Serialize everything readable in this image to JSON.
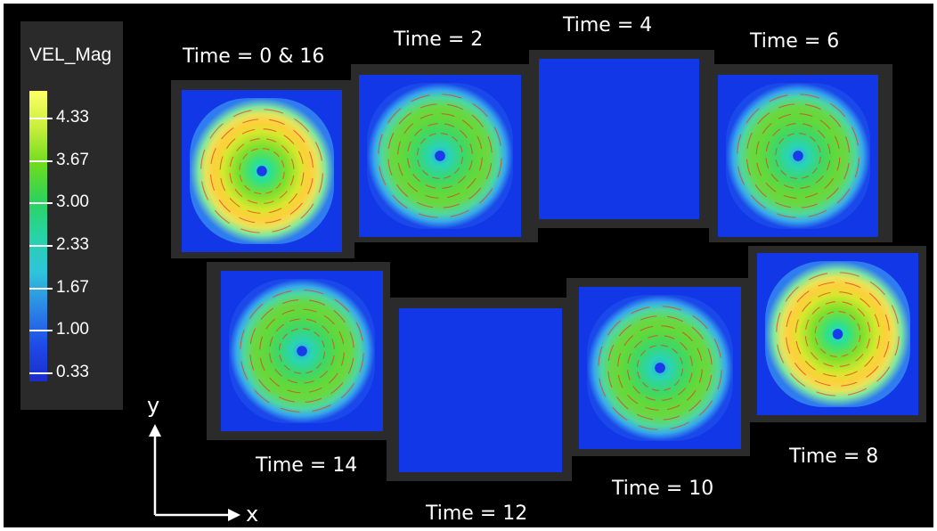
{
  "colors": {
    "background": "#000000",
    "outer_border": "#ffffff",
    "legend_panel": "#2a2a2a",
    "frame": "#2b2b2b",
    "field_blue": "#1237e6",
    "text": "#ffffff"
  },
  "colorbar": {
    "title": "VEL_Mag",
    "ticks": [
      "4.33",
      "3.67",
      "3.00",
      "2.33",
      "1.67",
      "1.00",
      "0.33"
    ],
    "gradient": [
      "#ffff66",
      "#c8ef3c",
      "#6fdc1e",
      "#2dd35a",
      "#27d3a8",
      "#2ec4dc",
      "#2b86e6",
      "#1e4be8",
      "#1a2ccc"
    ]
  },
  "axes": {
    "x_label": "x",
    "y_label": "y"
  },
  "panels": [
    {
      "caption": "Time = 0 & 16",
      "field": "strong-vortex"
    },
    {
      "caption": "Time = 2",
      "field": "moderate-vortex"
    },
    {
      "caption": "Time = 4",
      "field": "uniform-blue"
    },
    {
      "caption": "Time = 6",
      "field": "moderate-vortex"
    },
    {
      "caption": "Time = 8",
      "field": "strong-vortex"
    },
    {
      "caption": "Time = 10",
      "field": "moderate-vortex"
    },
    {
      "caption": "Time = 12",
      "field": "uniform-blue"
    },
    {
      "caption": "Time = 14",
      "field": "moderate-vortex"
    }
  ]
}
